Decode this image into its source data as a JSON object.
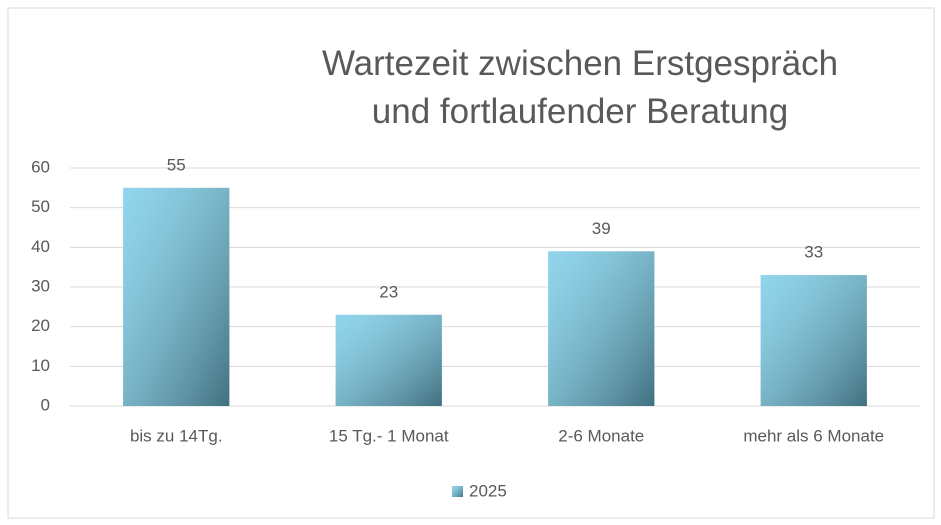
{
  "chart_data": {
    "type": "bar",
    "title": "Wartezeit zwischen Erstgespräch und fortlaufender Beratung",
    "categories": [
      "bis zu 14Tg.",
      "15 Tg.- 1 Monat",
      "2-6 Monate",
      "mehr als 6 Monate"
    ],
    "series": [
      {
        "name": "2025",
        "color": "#74cbe8",
        "values": [
          55,
          23,
          39,
          33
        ]
      }
    ],
    "ylim": [
      0,
      60
    ],
    "yticks": [
      0,
      10,
      20,
      30,
      40,
      50,
      60
    ],
    "grid": true,
    "legend": "bottom"
  }
}
